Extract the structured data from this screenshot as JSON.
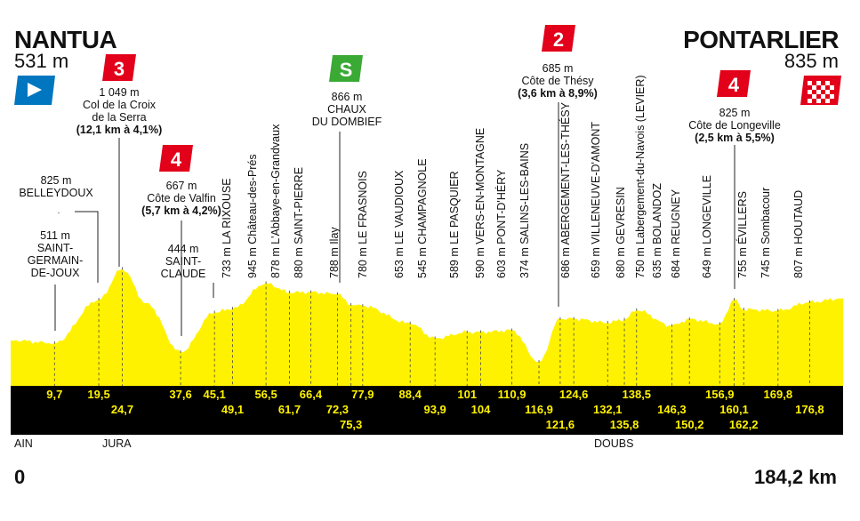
{
  "start": {
    "city": "NANTUA",
    "altitude": "531 m"
  },
  "finish": {
    "city": "PONTARLIER",
    "altitude": "835 m"
  },
  "distance_start": "0",
  "distance_total": "184,2 km",
  "regions": [
    "AIN",
    "JURA",
    "DOUBS"
  ],
  "climbs": [
    {
      "cat": "3",
      "alt": "1 049 m",
      "name": [
        "Col de la Croix",
        "de la Serra"
      ],
      "detail": "(12,1 km à 4,1%)"
    },
    {
      "cat": "4",
      "alt": "667 m",
      "name": [
        "Côte de Valfin"
      ],
      "detail": "(5,7 km à 4,2%)"
    },
    {
      "cat": "S",
      "alt": "866 m",
      "name": [
        "CHAUX",
        "DU DOMBIEF"
      ],
      "detail": ""
    },
    {
      "cat": "2",
      "alt": "685 m",
      "name": [
        "Côte de Thésy"
      ],
      "detail": "(3,6 km à 8,9%)"
    },
    {
      "cat": "4",
      "alt": "825 m",
      "name": [
        "Côte de Longeville"
      ],
      "detail": "(2,5 km à 5,5%)"
    }
  ],
  "places_horizontal": [
    {
      "alt": "511 m",
      "name": [
        "SAINT-",
        "GERMAIN-",
        "DE-JOUX"
      ]
    },
    {
      "alt": "825 m",
      "name": [
        "BELLEYDOUX"
      ]
    },
    {
      "alt": "444 m",
      "name": [
        "SAINT-",
        "CLAUDE"
      ]
    }
  ],
  "places_vertical": [
    "733 m LA RIXOUSE",
    "945 m Château-des-Prés",
    "878 m L'Abbaye-en-Grandvaux",
    "880 m SAINT-PIERRE",
    "788 m Ilay",
    "780 m LE FRASNOIS",
    "653 m LE VAUDIOUX",
    "545 m CHAMPAGNOLE",
    "589 m LE PASQUIER",
    "590 m VERS-EN-MONTAGNE",
    "603 m PONT-D'HÉRY",
    "374 m SALINS-LES-BAINS",
    "686 m ABERGEMENT-LES-THÉSY",
    "659 m VILLENEUVE-D'AMONT",
    "680 m GEVRESIN",
    "750 m Labergement-du-Navois (LEVIER)",
    "635 m BOLANDOZ",
    "684 m REUGNEY",
    "649 m LONGEVILLE",
    "755 m ÉVILLERS",
    "745 m Sombacour",
    "807 m HOUTAUD"
  ],
  "km_row1": [
    "9,7",
    "19,5",
    "37,6",
    "45,1",
    "56,5",
    "66,4",
    "77,9",
    "88,4",
    "101",
    "110,9",
    "124,6",
    "138,5",
    "156,9",
    "169,8"
  ],
  "km_row2": [
    "24,7",
    "49,1",
    "61,7",
    "72,3",
    "93,9",
    "104",
    "116,9",
    "132,1",
    "146,3",
    "160,1",
    "176,8"
  ],
  "km_row3": [
    "75,3",
    "121,6",
    "135,8",
    "150,2",
    "162,2"
  ],
  "colors": {
    "profile_yellow": "#fff200",
    "km_band": "#000000",
    "km_text": "#fff200",
    "climb_red": "#e2001a",
    "sprint_green": "#3aaa35",
    "start_blue": "#0076c0",
    "finish_flag": "#e2001a"
  },
  "chart_data": {
    "type": "area",
    "title": "",
    "xlabel": "",
    "ylabel": "",
    "x_unit": "km",
    "y_unit": "m",
    "xlim": [
      0,
      184.2
    ],
    "series": [
      {
        "values_x": [
          0,
          9.7,
          19.5,
          24.7,
          30,
          37.6,
          45.1,
          49.1,
          56.5,
          61.7,
          66.4,
          72.3,
          75.3,
          77.9,
          88.4,
          93.9,
          101,
          104,
          110.9,
          116.9,
          121.6,
          124.6,
          132.1,
          135.8,
          138.5,
          146.3,
          150.2,
          156.9,
          160.1,
          162.2,
          169.8,
          176.8,
          184.2
        ],
        "values_y": [
          531,
          511,
          825,
          1049,
          800,
          444,
          733,
          760,
          945,
          878,
          880,
          866,
          788,
          780,
          653,
          545,
          589,
          590,
          603,
          374,
          685,
          686,
          659,
          680,
          750,
          635,
          684,
          649,
          825,
          755,
          745,
          807,
          835
        ]
      }
    ]
  }
}
